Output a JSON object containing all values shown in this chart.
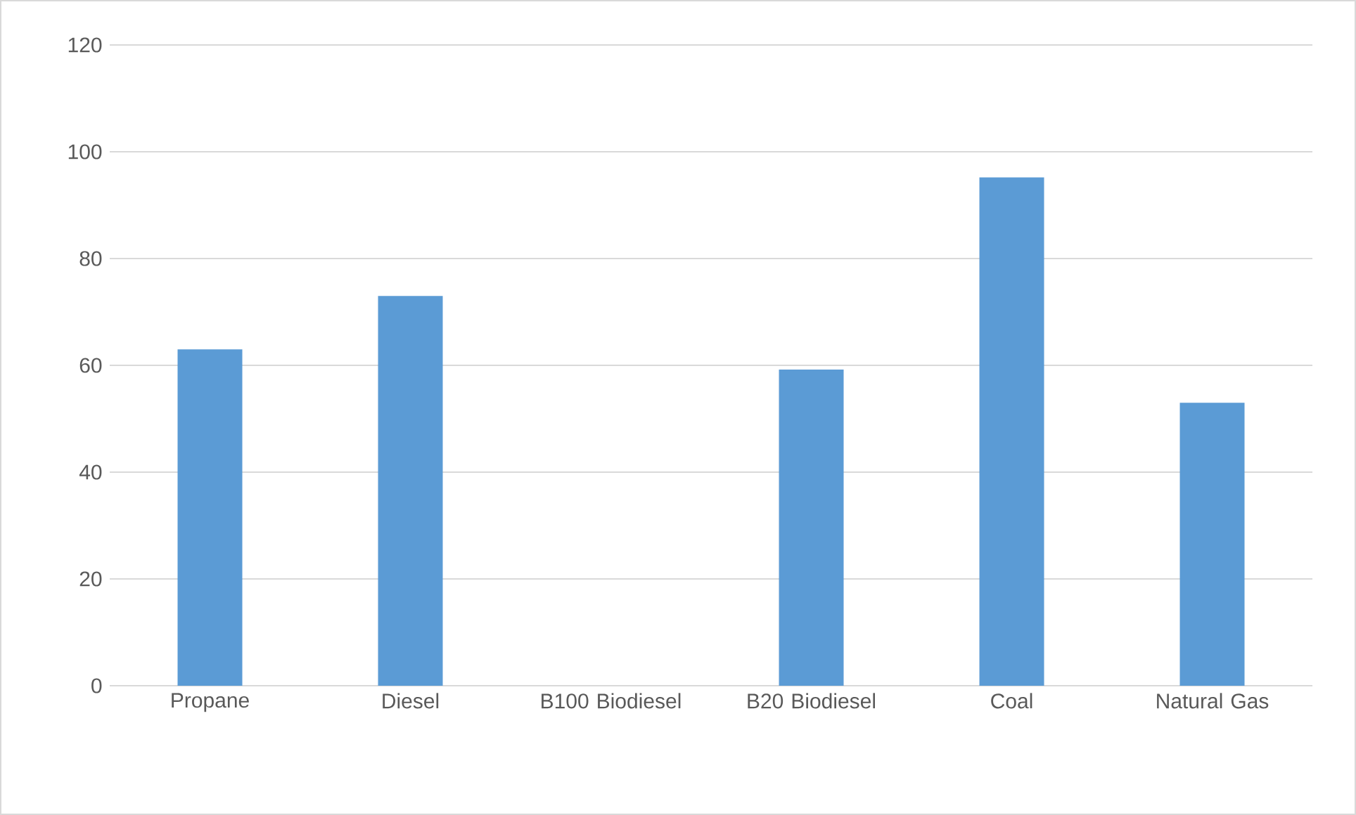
{
  "chart_data": {
    "type": "bar",
    "categories": [
      "Propane",
      "Diesel",
      "B100 Biodiesel",
      "B20 Biodiesel",
      "Coal",
      "Natural Gas"
    ],
    "values": [
      63,
      73,
      0,
      59.2,
      95.2,
      53
    ],
    "color": "#5b9bd5",
    "ylim": [
      0,
      120
    ],
    "yticks": [
      0,
      20,
      40,
      60,
      80,
      100,
      120
    ],
    "grid": "y"
  }
}
